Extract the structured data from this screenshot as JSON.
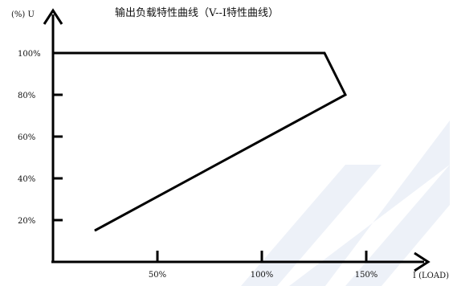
{
  "chart_data": {
    "type": "line",
    "title": "输出负载特性曲线（V--I特性曲线）",
    "ylabel": "(%)  U",
    "xlabel": "I (LOAD)",
    "x_ticks": [
      {
        "value": 50,
        "label": "50%"
      },
      {
        "value": 100,
        "label": "100%"
      },
      {
        "value": 150,
        "label": "150%"
      }
    ],
    "y_ticks": [
      {
        "value": 20,
        "label": "20%"
      },
      {
        "value": 40,
        "label": "40%"
      },
      {
        "value": 60,
        "label": "60%"
      },
      {
        "value": 80,
        "label": "80%"
      },
      {
        "value": 100,
        "label": "100%"
      }
    ],
    "xlim": [
      0,
      175
    ],
    "ylim": [
      0,
      115
    ],
    "grid": false,
    "series": [
      {
        "x": [
          0,
          130,
          140,
          20
        ],
        "y": [
          100,
          100,
          80,
          15
        ]
      }
    ],
    "colors": {
      "line": "#000000",
      "axis": "#000000",
      "watermark": "#dfe6f3"
    }
  }
}
